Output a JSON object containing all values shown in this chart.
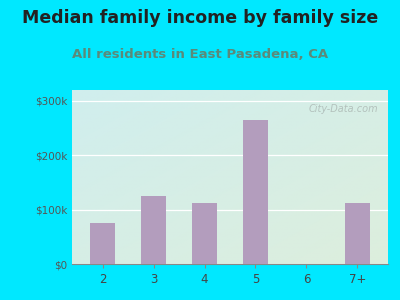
{
  "title": "Median family income by family size",
  "subtitle": "All residents in East Pasadena, CA",
  "categories": [
    "2",
    "3",
    "4",
    "5",
    "6",
    "7+"
  ],
  "values": [
    75000,
    125000,
    113000,
    265000,
    0,
    113000
  ],
  "bar_color": "#b39dbd",
  "title_fontsize": 12.5,
  "subtitle_fontsize": 9.5,
  "subtitle_color": "#5a8a7a",
  "title_color": "#222222",
  "bg_outer": "#00e8ff",
  "bg_plot_top_left": "#d0eeee",
  "bg_plot_bottom_right": "#ddeedd",
  "ylim": [
    0,
    320000
  ],
  "yticks": [
    0,
    100000,
    200000,
    300000
  ],
  "ytick_labels": [
    "$0",
    "$100k",
    "$200k",
    "$300k"
  ],
  "watermark": "City-Data.com"
}
